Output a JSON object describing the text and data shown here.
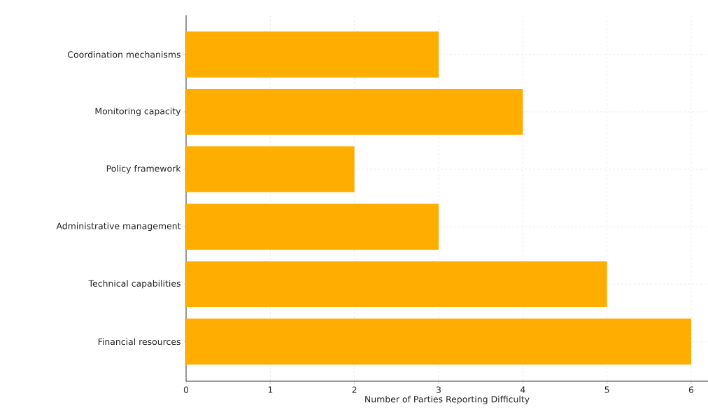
{
  "chart_data": {
    "type": "bar",
    "orientation": "horizontal",
    "xlabel": "Number of Parties Reporting Difficulty",
    "categories": [
      "Coordination mechanisms",
      "Monitoring capacity",
      "Policy framework",
      "Administrative management",
      "Technical capabilities",
      "Financial resources"
    ],
    "values": [
      3,
      4,
      2,
      3,
      5,
      6
    ],
    "color": "#ffae00",
    "xlim": [
      0,
      6.2
    ],
    "xticks": [
      0,
      1,
      2,
      3,
      4,
      5,
      6
    ],
    "grid": true
  }
}
